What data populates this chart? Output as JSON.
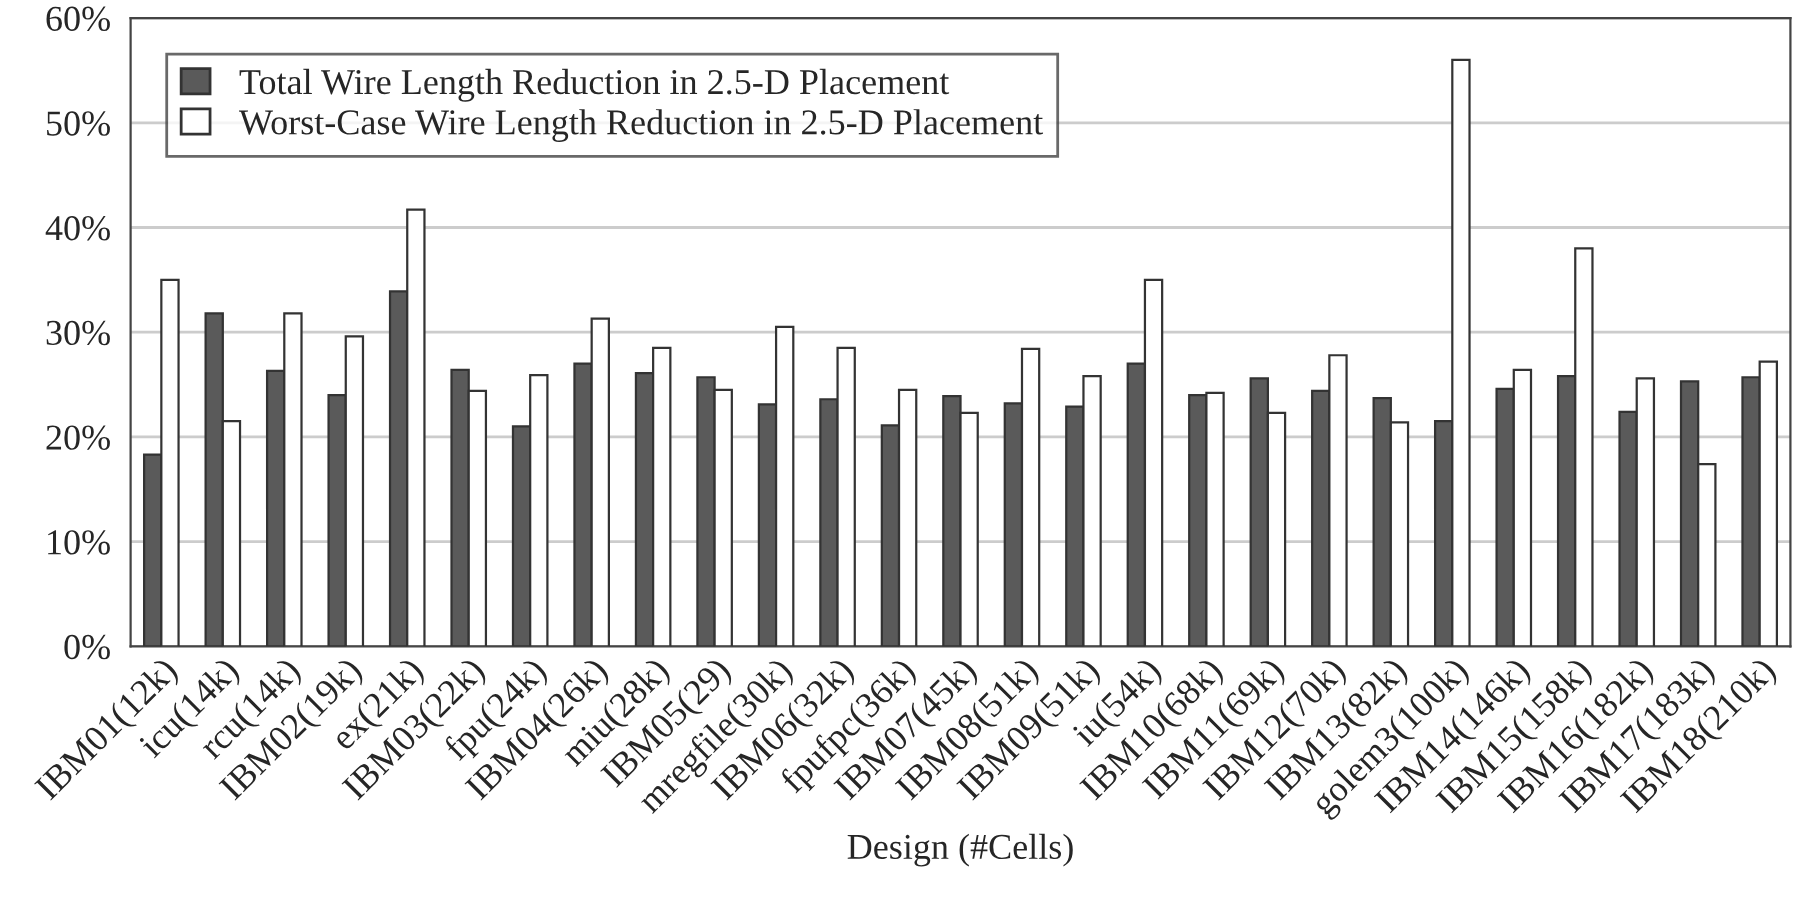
{
  "chart_data": {
    "type": "bar",
    "xlabel": "Design (#Cells)",
    "categories": [
      "IBM01(12k)",
      "icu(14k)",
      "rcu(14k)",
      "IBM02(19k)",
      "ex(21k)",
      "IBM03(22k)",
      "fpu(24k)",
      "IBM04(26k)",
      "miu(28k)",
      "IBM05(29)",
      "mregfile(30k)",
      "IBM06(32k)",
      "fpufpc(36k)",
      "IBM07(45k)",
      "IBM08(51k)",
      "IBM09(51k)",
      "iu(54k)",
      "IBM10(68k)",
      "IBM11(69k)",
      "IBM12(70k)",
      "IBM13(82k)",
      "golem3(100k)",
      "IBM14(146k)",
      "IBM15(158k)",
      "IBM16(182k)",
      "IBM17(183k)",
      "IBM18(210k)"
    ],
    "series": [
      {
        "name": "Total Wire Length Reduction in 2.5-D Placement",
        "color": "#5a5a5a",
        "values": [
          18.3,
          31.8,
          26.3,
          24.0,
          33.9,
          26.4,
          21.0,
          27.0,
          26.1,
          25.7,
          23.1,
          23.6,
          21.1,
          23.9,
          23.2,
          22.9,
          27.0,
          24.0,
          25.6,
          24.4,
          23.7,
          21.5,
          24.6,
          25.8,
          22.4,
          25.3,
          25.7
        ]
      },
      {
        "name": "Worst-Case Wire Length Reduction in 2.5-D Placement",
        "color": "#ffffff",
        "values": [
          35.0,
          21.5,
          31.8,
          29.6,
          41.7,
          24.4,
          25.9,
          31.3,
          28.5,
          24.5,
          30.5,
          28.5,
          24.5,
          22.3,
          28.4,
          25.8,
          35.0,
          24.2,
          22.3,
          27.8,
          21.4,
          56.0,
          26.4,
          38.0,
          25.6,
          17.4,
          27.2
        ]
      }
    ],
    "ylim": [
      0,
      60
    ],
    "yticks": [
      {
        "value": 0,
        "label": "0%"
      },
      {
        "value": 10,
        "label": "10%"
      },
      {
        "value": 20,
        "label": "20%"
      },
      {
        "value": 30,
        "label": "30%"
      },
      {
        "value": 40,
        "label": "40%"
      },
      {
        "value": 50,
        "label": "50%"
      },
      {
        "value": 60,
        "label": "60%"
      }
    ],
    "grid": "y",
    "legend": "top left"
  }
}
